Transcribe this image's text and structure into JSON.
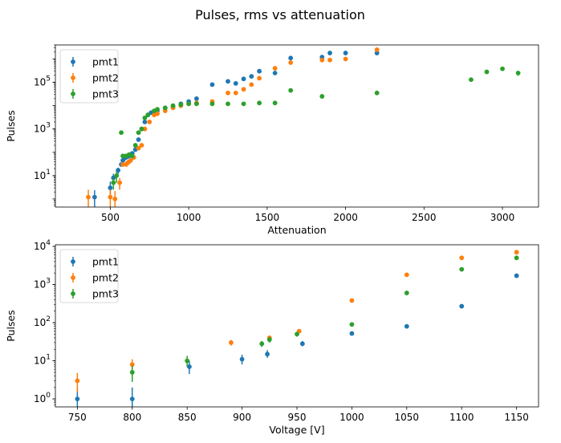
{
  "figure": {
    "suptitle": "Pulses, rms vs attenuation"
  },
  "chart_data": [
    {
      "type": "scatter",
      "xlabel": "Attenuation",
      "ylabel": "Pulses",
      "yscale": "log",
      "xlim": [
        150,
        3230
      ],
      "ylim": [
        0.45,
        4000000
      ],
      "xticks": [
        500,
        1000,
        1500,
        2000,
        2500,
        3000
      ],
      "yticks": [
        10,
        1000,
        100000
      ],
      "legend_position": "upper left",
      "grid": false,
      "series": [
        {
          "name": "pmt1",
          "color": "#1f77b4",
          "x": [
            400,
            500,
            520,
            550,
            570,
            580,
            590,
            600,
            610,
            620,
            640,
            660,
            680,
            700,
            720,
            740,
            760,
            800,
            850,
            900,
            950,
            1000,
            1050,
            1150,
            1250,
            1300,
            1350,
            1400,
            1450,
            1550,
            1650,
            1850,
            1900,
            2000,
            2200
          ],
          "y": [
            1.2,
            3,
            8,
            17,
            30,
            45,
            55,
            60,
            65,
            70,
            90,
            130,
            350,
            1000,
            2000,
            4000,
            5000,
            6000,
            8000,
            9000,
            12000,
            15000,
            20000,
            80000,
            110000,
            90000,
            140000,
            180000,
            300000,
            250000,
            1100000,
            1200000,
            1800000,
            1800000,
            1800000
          ],
          "yerr_low": [
            0.9,
            1.5,
            3,
            5,
            0,
            0,
            0,
            0,
            0,
            0,
            0,
            0,
            0,
            0,
            0,
            0,
            0,
            0,
            0,
            0,
            0,
            0,
            0,
            0,
            0,
            0,
            0,
            0,
            0,
            0,
            0,
            0,
            0,
            0,
            0
          ],
          "yerr_high": [
            1.2,
            2.5,
            4,
            5,
            0,
            0,
            0,
            0,
            0,
            0,
            0,
            0,
            0,
            0,
            0,
            0,
            0,
            0,
            0,
            0,
            0,
            0,
            0,
            0,
            0,
            0,
            0,
            0,
            0,
            0,
            0,
            0,
            0,
            0,
            0
          ]
        },
        {
          "name": "pmt2",
          "color": "#ff7f0e",
          "x": [
            360,
            500,
            530,
            560,
            580,
            600,
            610,
            620,
            630,
            650,
            680,
            700,
            720,
            750,
            780,
            800,
            850,
            900,
            950,
            1000,
            1050,
            1150,
            1250,
            1300,
            1350,
            1400,
            1450,
            1550,
            1650,
            1850,
            1900,
            2000,
            2200
          ],
          "y": [
            1.2,
            1.2,
            1,
            5,
            30,
            30,
            35,
            40,
            45,
            60,
            150,
            200,
            1000,
            2000,
            4000,
            4500,
            6000,
            8000,
            10000,
            12000,
            13000,
            15000,
            35000,
            35000,
            50000,
            80000,
            150000,
            400000,
            700000,
            900000,
            900000,
            1000000,
            2500000
          ],
          "yerr_low": [
            0.9,
            0.9,
            0.8,
            2.5,
            0,
            0,
            0,
            0,
            0,
            0,
            0,
            0,
            0,
            0,
            0,
            0,
            0,
            0,
            0,
            0,
            0,
            0,
            0,
            0,
            0,
            0,
            0,
            0,
            0,
            0,
            0,
            0,
            0
          ],
          "yerr_high": [
            1.3,
            1.3,
            1.2,
            3,
            0,
            0,
            0,
            0,
            0,
            0,
            0,
            0,
            0,
            0,
            0,
            0,
            0,
            0,
            0,
            0,
            0,
            0,
            0,
            0,
            0,
            0,
            0,
            0,
            0,
            0,
            0,
            0,
            0
          ]
        },
        {
          "name": "pmt3",
          "color": "#2ca02c",
          "x": [
            520,
            540,
            570,
            580,
            600,
            620,
            640,
            660,
            680,
            700,
            720,
            740,
            780,
            800,
            850,
            900,
            950,
            1000,
            1050,
            1150,
            1250,
            1350,
            1450,
            1550,
            1650,
            1850,
            2200,
            2800,
            2900,
            3000,
            3100
          ],
          "y": [
            5,
            10,
            700,
            70,
            70,
            80,
            70,
            200,
            700,
            1000,
            3000,
            4000,
            6000,
            7000,
            8000,
            10000,
            11000,
            12000,
            12000,
            12000,
            12000,
            12000,
            13000,
            13000,
            45000,
            25000,
            35000,
            130000,
            280000,
            380000,
            250000
          ],
          "yerr_low": [
            2.5,
            5,
            0,
            0,
            0,
            0,
            0,
            0,
            0,
            0,
            0,
            0,
            0,
            0,
            0,
            0,
            0,
            0,
            0,
            0,
            0,
            0,
            0,
            0,
            0,
            0,
            0,
            0,
            0,
            0,
            60000
          ],
          "yerr_high": [
            3,
            5,
            0,
            0,
            0,
            0,
            0,
            0,
            0,
            0,
            0,
            0,
            0,
            0,
            0,
            0,
            0,
            0,
            0,
            0,
            0,
            0,
            0,
            0,
            0,
            0,
            0,
            0,
            0,
            0,
            60000
          ]
        }
      ]
    },
    {
      "type": "scatter",
      "xlabel": "Voltage [V]",
      "ylabel": "Pulses",
      "yscale": "log",
      "xlim": [
        730,
        1170
      ],
      "ylim": [
        0.62,
        11000
      ],
      "xticks": [
        750,
        800,
        850,
        900,
        950,
        1000,
        1050,
        1100,
        1150
      ],
      "yticks": [
        1,
        10,
        100,
        1000,
        10000
      ],
      "legend_position": "upper left",
      "grid": false,
      "series": [
        {
          "name": "pmt1",
          "color": "#1f77b4",
          "x": [
            750,
            800,
            852,
            900,
            923,
            955,
            1000,
            1050,
            1100,
            1150
          ],
          "y": [
            1,
            1,
            7,
            11,
            15,
            28,
            52,
            80,
            270,
            1700
          ],
          "yerr_low": [
            0.7,
            0.7,
            2.5,
            3,
            3,
            4,
            0,
            0,
            0,
            0
          ],
          "yerr_high": [
            1,
            1,
            3,
            3.5,
            4,
            5,
            0,
            0,
            0,
            0
          ]
        },
        {
          "name": "pmt2",
          "color": "#ff7f0e",
          "x": [
            750,
            800,
            890,
            925,
            952,
            1000,
            1050,
            1100,
            1150
          ],
          "y": [
            3,
            8,
            30,
            40,
            60,
            380,
            1800,
            5000,
            7000
          ],
          "yerr_low": [
            1.5,
            2.5,
            5,
            6,
            7,
            0,
            0,
            0,
            0
          ],
          "yerr_high": [
            1.8,
            3,
            5,
            6,
            8,
            0,
            0,
            0,
            0
          ]
        },
        {
          "name": "pmt3",
          "color": "#2ca02c",
          "x": [
            800,
            850,
            918,
            925,
            950,
            1000,
            1050,
            1100,
            1150
          ],
          "y": [
            5,
            10,
            28,
            36,
            50,
            90,
            600,
            2500,
            5000
          ],
          "yerr_low": [
            2.2,
            3,
            5,
            6,
            7,
            0,
            0,
            0,
            0
          ],
          "yerr_high": [
            2.5,
            3.5,
            5,
            6,
            8,
            0,
            0,
            0,
            0
          ]
        }
      ]
    }
  ]
}
